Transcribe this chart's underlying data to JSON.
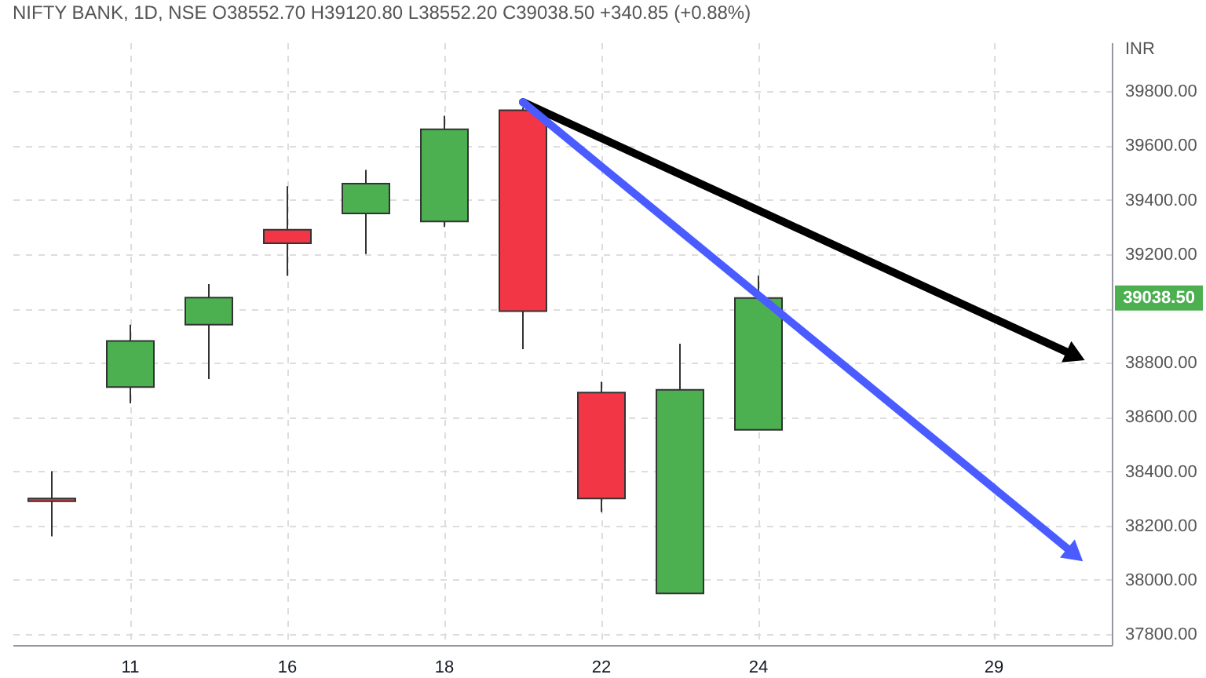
{
  "chart_data": {
    "type": "candlestick",
    "title": "NIFTY BANK, 1D, NSE  O38552.70  H39120.80  L38552.20  C39038.50  +340.85 (+0.88%)",
    "ylabel": "INR",
    "categories": [
      null,
      "11",
      null,
      "16",
      null,
      "18",
      null,
      "22",
      null,
      "24",
      null,
      null,
      "29",
      null
    ],
    "ohlc": [
      [
        38300,
        38400,
        38160,
        38290
      ],
      [
        38710,
        38940,
        38650,
        38880
      ],
      [
        38940,
        39090,
        38740,
        39040
      ],
      [
        39290,
        39450,
        39120,
        39240
      ],
      [
        39350,
        39510,
        39200,
        39460
      ],
      [
        39320,
        39710,
        39300,
        39660
      ],
      [
        39730,
        39740,
        38850,
        38990
      ],
      [
        38690,
        38730,
        38250,
        38300
      ],
      [
        37950,
        38870,
        37950,
        38700
      ],
      [
        38552.7,
        39120.8,
        38552.2,
        39038.5
      ],
      null,
      null,
      null,
      null
    ],
    "colors": [
      "#f23645",
      "#4caf50",
      "#4caf50",
      "#f23645",
      "#4caf50",
      "#4caf50",
      "#f23645",
      "#f23645",
      "#4caf50",
      "#4caf50",
      null,
      null,
      null,
      null
    ],
    "series": [
      {
        "type": "line",
        "color": "#000000",
        "values": [
          null,
          null,
          null,
          null,
          null,
          null,
          39760,
          null,
          null,
          null,
          null,
          null,
          null,
          38830
        ]
      },
      {
        "type": "line",
        "color": "#4a5cff",
        "values": [
          null,
          null,
          null,
          null,
          null,
          null,
          39760,
          null,
          null,
          null,
          null,
          null,
          null,
          38100
        ]
      }
    ],
    "ylim": [
      37760,
      39980
    ],
    "yticks": [
      {
        "value": 37800,
        "label": "37800.00"
      },
      {
        "value": 38000,
        "label": "38000.00"
      },
      {
        "value": 38200,
        "label": "38200.00"
      },
      {
        "value": 38400,
        "label": "38400.00"
      },
      {
        "value": 38600,
        "label": "38600.00"
      },
      {
        "value": 38800,
        "label": "38800.00"
      },
      {
        "value": 39000,
        "label": null
      },
      {
        "value": 39200,
        "label": "39200.00"
      },
      {
        "value": 39400,
        "label": "39400.00"
      },
      {
        "value": 39600,
        "label": "39600.00"
      },
      {
        "value": 39800,
        "label": "39800.00"
      }
    ],
    "annotations": [
      "39038.50"
    ],
    "grid": true
  }
}
